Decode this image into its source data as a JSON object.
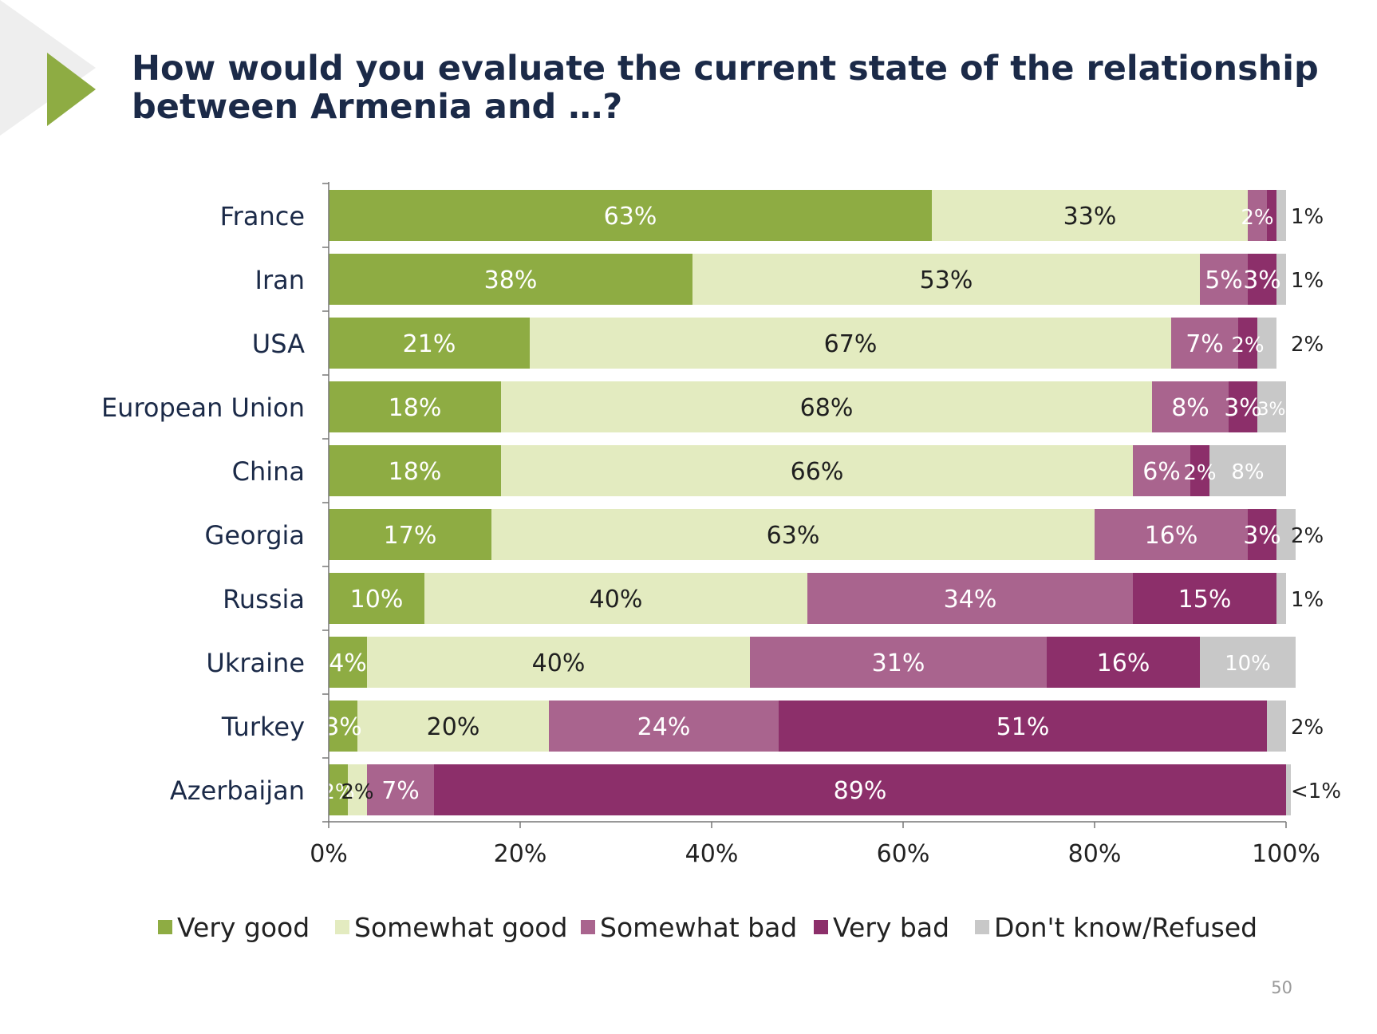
{
  "slide": {
    "title_line1": "How would you evaluate the current state of the relationship",
    "title_line2": "between Armenia and …?",
    "page_number": "50"
  },
  "colors": {
    "very_good": "#8eac43",
    "somewhat_good": "#e3ebc0",
    "somewhat_bad": "#a9648e",
    "very_bad": "#8c2f6a",
    "dont_know": "#c8c8c8",
    "title": "#1b2a48",
    "accent_arrow": "#8eac43"
  },
  "chart_data": {
    "type": "bar",
    "orientation": "horizontal",
    "stacked": true,
    "title": "How would you evaluate the current state of the relationship between Armenia and …?",
    "xlim": [
      0,
      100
    ],
    "x_ticks": [
      "0%",
      "20%",
      "40%",
      "60%",
      "80%",
      "100%"
    ],
    "legend_position": "bottom",
    "grid": false,
    "categories": [
      "France",
      "Iran",
      "USA",
      "European Union",
      "China",
      "Georgia",
      "Russia",
      "Ukraine",
      "Turkey",
      "Azerbaijan"
    ],
    "series": [
      {
        "name": "Very good",
        "color": "#8eac43",
        "values": [
          63,
          38,
          21,
          18,
          18,
          17,
          10,
          4,
          3,
          2
        ],
        "labels": [
          "63%",
          "38%",
          "21%",
          "18%",
          "18%",
          "17%",
          "10%",
          "4%",
          "3%",
          "2%"
        ]
      },
      {
        "name": "Somewhat good",
        "color": "#e3ebc0",
        "values": [
          33,
          53,
          67,
          68,
          66,
          63,
          40,
          40,
          20,
          2
        ],
        "labels": [
          "33%",
          "53%",
          "67%",
          "68%",
          "66%",
          "63%",
          "40%",
          "40%",
          "20%",
          "2%"
        ]
      },
      {
        "name": "Somewhat bad",
        "color": "#a9648e",
        "values": [
          2,
          5,
          7,
          8,
          6,
          16,
          34,
          31,
          24,
          7
        ],
        "labels": [
          "2%",
          "5%",
          "7%",
          "8%",
          "6%",
          "16%",
          "34%",
          "31%",
          "24%",
          "7%"
        ]
      },
      {
        "name": "Very bad",
        "color": "#8c2f6a",
        "values": [
          1,
          3,
          2,
          3,
          2,
          3,
          15,
          16,
          51,
          89
        ],
        "labels": [
          "",
          "3%",
          "2%",
          "3%",
          "2%",
          "3%",
          "15%",
          "16%",
          "51%",
          "89%"
        ]
      },
      {
        "name": "Don't know/Refused",
        "color": "#c8c8c8",
        "values": [
          1,
          1,
          2,
          3,
          8,
          2,
          1,
          10,
          2,
          0.5
        ],
        "labels": [
          "1%",
          "1%",
          "2%",
          "3%",
          "8%",
          "2%",
          "1%",
          "10%",
          "2%",
          "<1%"
        ]
      }
    ]
  }
}
